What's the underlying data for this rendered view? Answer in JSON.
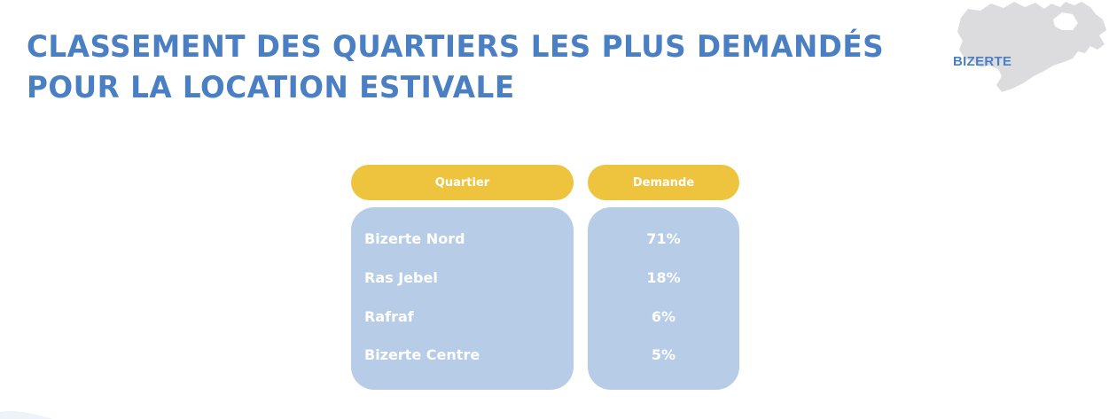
{
  "title": {
    "line1": "CLASSEMENT DES QUARTIERS LES PLUS DEMANDÉS",
    "line2": "POUR LA LOCATION ESTIVALE"
  },
  "region": {
    "label": "BIZERTE",
    "map_icon": "bizerte-map-icon"
  },
  "table": {
    "headers": {
      "quartier": "Quartier",
      "demande": "Demande"
    },
    "rows": [
      {
        "quartier": "Bizerte Nord",
        "demande": "71%"
      },
      {
        "quartier": "Ras Jebel",
        "demande": "18%"
      },
      {
        "quartier": "Rafraf",
        "demande": "6%"
      },
      {
        "quartier": "Bizerte Centre",
        "demande": "5%"
      }
    ]
  },
  "colors": {
    "title": "#4a7fc4",
    "header_fill": "#eec43e",
    "panel_fill": "#b7cce7",
    "map_fill": "#dcdcde"
  }
}
